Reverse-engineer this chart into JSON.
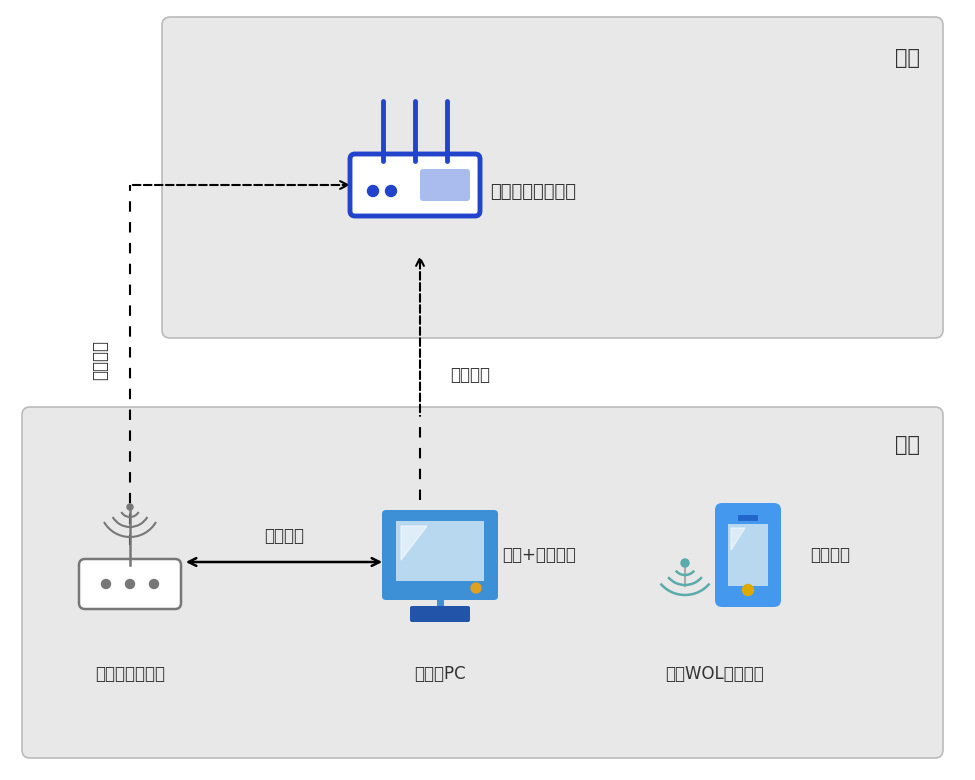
{
  "bg_color": "#ffffff",
  "box_color": "#e8e8e8",
  "box_edge": "#bbbbbb",
  "router_blue": "#2244cc",
  "router_light_blue": "#aabbee",
  "label_color": "#333333",
  "living_room_label": "客厅",
  "bedroom_label": "卧室",
  "living_router_label": "客厅的无线路由器",
  "old_router_label": "上古无线路由器",
  "pc_label": "卧室的PC",
  "device_label": "发起WOL指令开机",
  "wireless_bridge_label": "无线桥接",
  "wired_label": "有线连接",
  "wired_access_label": "有线+无线接入",
  "wireless_conn_label": "无线连接",
  "any_device_label": "任意设备"
}
